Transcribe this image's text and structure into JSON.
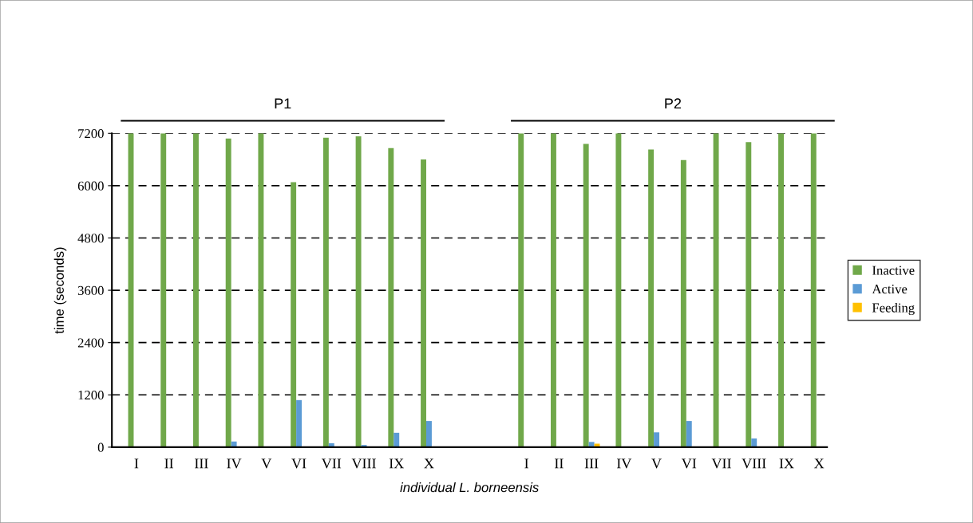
{
  "chart_data": {
    "type": "bar",
    "xlabel": "individual L. borneensis",
    "ylabel": "time (seconds)",
    "categories": [
      "I",
      "II",
      "III",
      "IV",
      "V",
      "VI",
      "VII",
      "VIII",
      "IX",
      "X",
      null,
      null,
      "I",
      "II",
      "III",
      "IV",
      "V",
      "VI",
      "VII",
      "VIII",
      "IX",
      "X"
    ],
    "series": [
      {
        "name": "Inactive",
        "color": "#70a84a",
        "values": [
          7200,
          7200,
          7200,
          7080,
          7200,
          6080,
          7100,
          7130,
          6860,
          6600,
          null,
          null,
          7200,
          7200,
          6960,
          7200,
          6830,
          6590,
          7200,
          7000,
          7200,
          7200
        ]
      },
      {
        "name": "Active",
        "color": "#5b9bd5",
        "values": [
          0,
          0,
          0,
          130,
          0,
          1080,
          90,
          50,
          330,
          600,
          null,
          null,
          0,
          0,
          120,
          0,
          340,
          600,
          0,
          200,
          0,
          0
        ]
      },
      {
        "name": "Feeding",
        "color": "#ffc000",
        "values": [
          0,
          0,
          0,
          0,
          0,
          0,
          0,
          0,
          0,
          0,
          null,
          null,
          0,
          0,
          80,
          0,
          0,
          0,
          0,
          0,
          0,
          0
        ]
      }
    ],
    "annotations": [
      "P1",
      "P2"
    ],
    "ylim": [
      0,
      7200
    ],
    "yticks": [
      0,
      1200,
      2400,
      3600,
      4800,
      6000,
      7200
    ],
    "grid": "y",
    "legend": "right"
  }
}
